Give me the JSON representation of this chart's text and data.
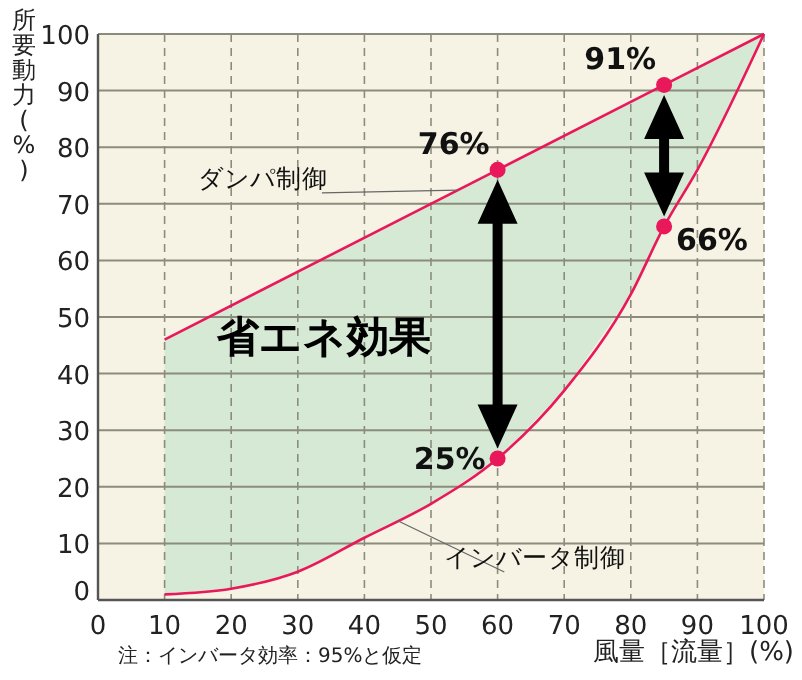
{
  "chart_data": {
    "type": "line",
    "xlabel": "風量［流量］(%)",
    "ylabel": "所要動力(%)",
    "xlim": [
      0,
      100
    ],
    "ylim": [
      0,
      100
    ],
    "xticks": [
      0,
      10,
      20,
      30,
      40,
      50,
      60,
      70,
      80,
      90,
      100
    ],
    "yticks": [
      0,
      10,
      20,
      30,
      40,
      50,
      60,
      70,
      80,
      90,
      100
    ],
    "grid": true,
    "series": [
      {
        "name": "ダンパ制御",
        "color": "#e8185a",
        "x": [
          10,
          60,
          85,
          100
        ],
        "values": [
          46,
          76,
          91,
          100
        ]
      },
      {
        "name": "インバータ制御",
        "color": "#e8185a",
        "x": [
          10,
          20,
          30,
          40,
          50,
          60,
          70,
          80,
          85,
          90,
          100
        ],
        "values": [
          1,
          2,
          5,
          11,
          17,
          25,
          37,
          54,
          66,
          76,
          100
        ],
        "lower": [
          1,
          2,
          5,
          11,
          17,
          25,
          37,
          54,
          66,
          76,
          100
        ],
        "upper": [
          46,
          52,
          58,
          64,
          70,
          76,
          82,
          88,
          91,
          94,
          100
        ]
      },
      {
        "type": "scatter",
        "color": "#e8185a",
        "x": [
          60,
          85
        ],
        "values": [
          76,
          91
        ],
        "value_labels": [
          "76%",
          "91%"
        ]
      },
      {
        "type": "scatter",
        "color": "#e8185a",
        "x": [
          60,
          85
        ],
        "values": [
          25,
          66
        ],
        "value_labels": [
          "25%",
          "66%"
        ]
      }
    ],
    "annotations": [
      "省エネ効果",
      "注：インバータ効率：95%と仮定"
    ]
  }
}
